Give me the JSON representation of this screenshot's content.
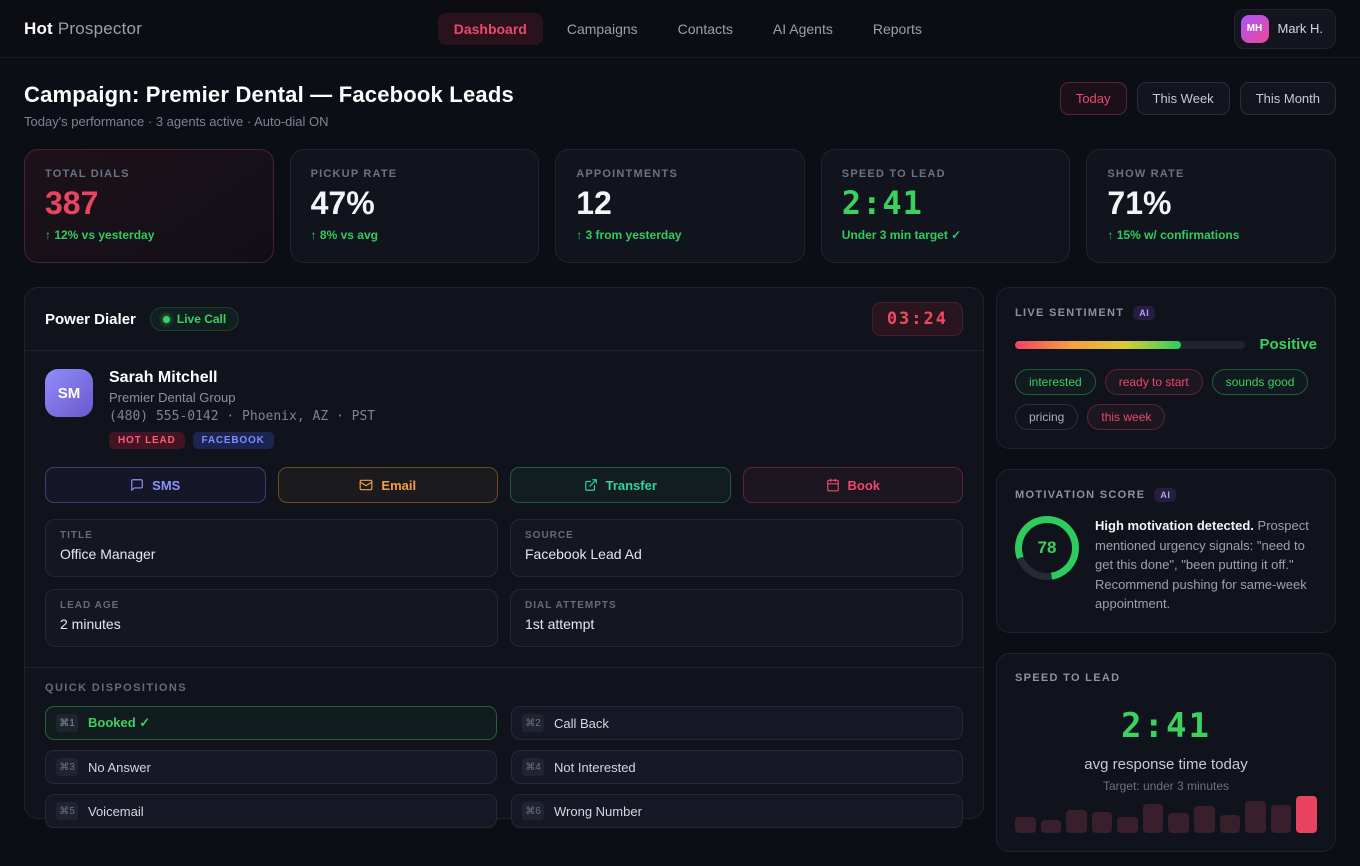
{
  "nav": {
    "brand_bold": "Hot",
    "brand_rest": " Prospector",
    "items": [
      {
        "label": "Dashboard"
      },
      {
        "label": "Campaigns"
      },
      {
        "label": "Contacts"
      },
      {
        "label": "AI Agents"
      },
      {
        "label": "Reports"
      }
    ],
    "user": {
      "initials": "MH",
      "name": "Mark H."
    }
  },
  "header": {
    "title": "Campaign: Premier Dental — Facebook Leads",
    "subtitle": "Today's performance · 3 agents active · Auto-dial ON",
    "periods": [
      {
        "label": "Today"
      },
      {
        "label": "This Week"
      },
      {
        "label": "This Month"
      }
    ]
  },
  "stats": [
    {
      "label": "TOTAL DIALS",
      "value": "387",
      "delta": "↑ 12% vs yesterday"
    },
    {
      "label": "PICKUP RATE",
      "value": "47%",
      "delta": "↑ 8% vs avg"
    },
    {
      "label": "APPOINTMENTS",
      "value": "12",
      "delta": "↑ 3 from yesterday"
    },
    {
      "label": "SPEED TO LEAD",
      "value": "2:41",
      "delta": "Under 3 min target ✓"
    },
    {
      "label": "SHOW RATE",
      "value": "71%",
      "delta": "↑ 15% w/ confirmations"
    }
  ],
  "dialer": {
    "title": "Power Dialer",
    "live_badge": "Live Call",
    "timer": "03:24",
    "contact": {
      "initials": "SM",
      "name": "Sarah Mitchell",
      "company": "Premier Dental Group",
      "phone_line": "(480) 555-0142 · Phoenix, AZ · PST",
      "badges": [
        {
          "label": "HOT LEAD"
        },
        {
          "label": "FACEBOOK"
        }
      ]
    },
    "actions": [
      {
        "label": "SMS",
        "icon": "chat-icon"
      },
      {
        "label": "Email",
        "icon": "envelope-icon"
      },
      {
        "label": "Transfer",
        "icon": "transfer-icon"
      },
      {
        "label": "Book",
        "icon": "calendar-icon"
      }
    ],
    "fields": [
      {
        "label": "TITLE",
        "value": "Office Manager"
      },
      {
        "label": "SOURCE",
        "value": "Facebook Lead Ad"
      },
      {
        "label": "LEAD AGE",
        "value": "2 minutes"
      },
      {
        "label": "DIAL ATTEMPTS",
        "value": "1st attempt"
      }
    ],
    "dispositions": {
      "heading": "QUICK DISPOSITIONS",
      "items": [
        {
          "key": "⌘1",
          "label": "Booked ✓"
        },
        {
          "key": "⌘2",
          "label": "Call Back"
        },
        {
          "key": "⌘3",
          "label": "No Answer"
        },
        {
          "key": "⌘4",
          "label": "Not Interested"
        },
        {
          "key": "⌘5",
          "label": "Voicemail"
        },
        {
          "key": "⌘6",
          "label": "Wrong Number"
        }
      ]
    }
  },
  "sentiment": {
    "heading": "LIVE SENTIMENT",
    "ai_badge": "AI",
    "fill_percent": 72,
    "label": "Positive",
    "tags": [
      {
        "label": "interested",
        "type": "green"
      },
      {
        "label": "ready to start",
        "type": "red"
      },
      {
        "label": "sounds good",
        "type": "green"
      },
      {
        "label": "pricing",
        "type": "neutral"
      },
      {
        "label": "this week",
        "type": "red"
      }
    ]
  },
  "motivation": {
    "heading": "MOTIVATION SCORE",
    "ai_badge": "AI",
    "score": 78,
    "text_bold": "High motivation detected.",
    "text_rest": " Prospect mentioned urgency signals: \"need to get this done\", \"been putting it off.\" Recommend pushing for same-week appointment.",
    "ring_color": "#2ecc5e",
    "ring_track": "#262b36"
  },
  "speed_panel": {
    "heading": "SPEED TO LEAD",
    "time": "2:41",
    "caption": "avg response time today",
    "target": "Target: under 3 minutes",
    "bars": [
      16,
      13,
      23,
      21,
      16,
      29,
      20,
      27,
      18,
      32,
      28,
      37
    ],
    "highlight_last": true,
    "bar_color": "#381f2b",
    "bar_highlight_color": "#e8435f"
  }
}
